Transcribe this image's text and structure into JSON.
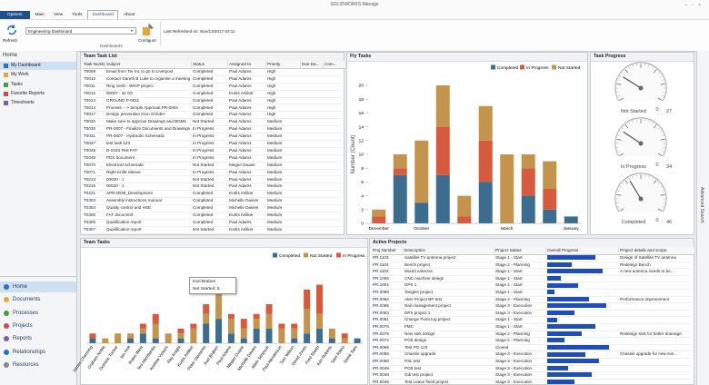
{
  "window": {
    "title": "SOLIDWORKS Manage"
  },
  "menu": [
    "Options",
    "Main",
    "View",
    "Tools",
    "Dashboard",
    "About"
  ],
  "ribbon": {
    "refresh": "Refresh",
    "dashboard_select": "Engineering Dashboard",
    "configure": "Configure",
    "last_refreshed": "Last Refreshed on: Nov/13/2017 03:11",
    "group": "Dashboards"
  },
  "sidebar": {
    "title": "Home",
    "items": [
      "My Dashboard",
      "My Work",
      "Tasks",
      "Favorite Reports",
      "Timesheets"
    ],
    "nav": [
      "Home",
      "Documents",
      "Processes",
      "Projects",
      "Reports",
      "Relationships",
      "Resources"
    ]
  },
  "side_tab": "Advanced Search",
  "task_list": {
    "title": "Team Task List",
    "columns": [
      "Task Number",
      "Subject",
      "Status",
      "Assigned to",
      "Priority",
      "Due Da...",
      "Com..."
    ],
    "rows": [
      [
        "T0009",
        "Email from Ter Inc to go to Liverpool",
        "Completed",
        "Paul Adams",
        "High"
      ],
      [
        "T0010",
        "Contact Gareth B Luke to organise a meeting",
        "Completed",
        "Paul Adams",
        "High"
      ],
      [
        "T0011",
        "Ring Gerb - WKIP project",
        "Completed",
        "Paul Adams",
        "High"
      ],
      [
        "T0012",
        "00007 - 3x Gh",
        "Completed",
        "Kurtis Anliker",
        "High"
      ],
      [
        "T0013",
        "GROUND P-0011",
        "Completed",
        "Paul Adams",
        "High"
      ],
      [
        "T0014",
        "Process - -> Simple Approval,PR-0004",
        "Completed",
        "Paul Adams",
        "High"
      ],
      [
        "T0017",
        "Design prevention Kion Grinder",
        "Completed",
        "Paul Adams",
        "High"
      ],
      [
        "T0020",
        "Make sure to approve Drawings and BOMs",
        "Not Started",
        "Paul Adams",
        "Medium"
      ],
      [
        "T0030",
        "PR-0007 - Finalize Documents and Drawings",
        "In Progress",
        "Paul Adams",
        "Medium"
      ],
      [
        "T0031",
        "PR-0007 - Hydraulic Schematic",
        "In Progress",
        "Paul Adams",
        "Medium"
      ],
      [
        "T0047",
        "test task 123",
        "In Progress",
        "Paul Adams",
        "Medium"
      ],
      [
        "T0048",
        "D-0443 Test FAT",
        "In Progress",
        "Paul Adams",
        "Medium"
      ],
      [
        "T0049",
        "PDS document",
        "In Progress",
        "Paul Adams",
        "Medium"
      ],
      [
        "T0070",
        "Electrical Schematic",
        "Not Started",
        "Megan Duane",
        "Medium"
      ],
      [
        "T0071",
        "Right Knife Sleeve",
        "In Progress",
        "Paul Adams",
        "Medium"
      ],
      [
        "T0213",
        "00020 - 1",
        "Not Started",
        "Paul Adams",
        "Medium"
      ],
      [
        "T0215",
        "00020 - 1",
        "Not Started",
        "Paul Adams",
        "Medium"
      ],
      [
        "T0221",
        "APR-0038_Development",
        "Completed",
        "Kurtis Anliker",
        "Medium"
      ],
      [
        "T0303",
        "Assembly instructions manual",
        "Completed",
        "Michelle Davies",
        "Medium"
      ],
      [
        "T0304",
        "Quality control and HSE",
        "Completed",
        "Michelle Davies",
        "Medium"
      ],
      [
        "T0305",
        "FAT document",
        "Completed",
        "Kurtis Anliker",
        "Medium"
      ],
      [
        "T0306",
        "Qualification report",
        "Completed",
        "Paul Adams",
        "Medium"
      ],
      [
        "T0307",
        "Qualification report",
        "Not Started",
        "Kurtis Anliker",
        "Medium"
      ]
    ]
  },
  "fly_tasks": {
    "type": "bar",
    "stacked": true,
    "title": "Fly Tasks",
    "y_label": "Number (Count)",
    "categories": [
      "December",
      null,
      "October",
      null,
      null,
      null,
      "March",
      null,
      null,
      "January"
    ],
    "series": [
      {
        "name": "Completed",
        "color": "#3d6d8e",
        "values": [
          0,
          7,
          3,
          7,
          0,
          6,
          0,
          4,
          2,
          1
        ]
      },
      {
        "name": "In Progress",
        "color": "#d65a3d",
        "values": [
          1,
          1,
          0,
          7,
          1,
          6,
          0,
          4,
          3,
          0
        ]
      },
      {
        "name": "Not Started",
        "color": "#c3944e",
        "values": [
          1,
          2,
          9,
          6,
          3,
          5,
          10,
          2,
          4,
          0
        ]
      }
    ],
    "ylim": [
      0,
      20
    ],
    "yticks": [
      0,
      2,
      4,
      6,
      8,
      10,
      12,
      14,
      16,
      18,
      20
    ]
  },
  "task_progress": {
    "title": "Task Progress",
    "gauges": [
      {
        "label": "Not Started",
        "value": 7,
        "min": 0,
        "max": 27
      },
      {
        "label": "In Progress",
        "value": 9,
        "min": 0,
        "max": 34
      },
      {
        "label": "Completed",
        "value": 17,
        "min": 0,
        "max": 46
      }
    ]
  },
  "team_tasks": {
    "type": "bar",
    "stacked": true,
    "title": "Team Tasks",
    "categories": [
      "James Channing",
      "Graham Noble",
      "Dominic Tucker",
      "Ian Holt",
      "Robin West",
      "Ted Hitchbanks",
      "Andrew Vickers",
      "Ray Knight",
      "Kurtis Anliker",
      "Peter Clements",
      "Karl Braben",
      "Paul Adams",
      "Megan Duane",
      "Michelle Davies",
      "Mark Simpson",
      "Paul Henderson",
      "Tom Wilson",
      "David Jones",
      "Fred Shield",
      "Kim Roberts",
      "Sam Rains",
      "Samir Sani"
    ],
    "series": [
      {
        "name": "Completed",
        "color": "#3d6d8e",
        "values": [
          1,
          0,
          0,
          1,
          2,
          1,
          0,
          1,
          0,
          4,
          5,
          2,
          1,
          3,
          3,
          0,
          1,
          2,
          3,
          1,
          0,
          1
        ]
      },
      {
        "name": "Not Started",
        "color": "#c3944e",
        "values": [
          0,
          1,
          2,
          1,
          1,
          3,
          2,
          1,
          3,
          2,
          5,
          3,
          2,
          2,
          3,
          3,
          2,
          5,
          3,
          2,
          1,
          0
        ]
      },
      {
        "name": "In Progress",
        "color": "#d65a3d",
        "values": [
          1,
          0,
          0,
          0,
          1,
          2,
          0,
          1,
          1,
          2,
          2,
          1,
          2,
          1,
          2,
          1,
          1,
          4,
          6,
          0,
          1,
          0
        ]
      }
    ],
    "ylim": [
      0,
      16
    ],
    "tooltip": {
      "title": "Karl Braben",
      "text": "Not Started: 5"
    }
  },
  "active_projects": {
    "title": "Active Projects",
    "columns": [
      "Proj Number",
      "Description",
      "Project Status",
      "Overall Progress",
      "Project details and scope"
    ],
    "xlim": [
      0,
      100
    ],
    "rows": [
      {
        "number": "PR.1103",
        "description": "Satellite TV antenna project",
        "status": "Stage 1 - Start",
        "progress": 70,
        "details": "Design of Satellite TV antenna"
      },
      {
        "number": "PR.1104",
        "description": "Bench project",
        "status": "Stage 2 - Planning",
        "progress": 35,
        "details": "Redesign Bench"
      },
      {
        "number": "PR.1102",
        "description": "Mount antenna",
        "status": "Stage 1 - Start",
        "progress": 80,
        "details": "A new antenna needs to be..."
      },
      {
        "number": "PR.1006",
        "description": "CNC machine design",
        "status": "Stage 1 - Start",
        "progress": 20
      },
      {
        "number": "PR.1001",
        "description": "DPS 1",
        "status": "Stage 1 - Start",
        "progress": 45
      },
      {
        "number": "PR.0098",
        "description": "Tangles project",
        "status": "Stage 1 - Start",
        "progress": 10
      },
      {
        "number": "PR.0092",
        "description": "Aker Project BP test",
        "status": "Stage 2 - Planning",
        "progress": 60,
        "details": "Performance improvement"
      },
      {
        "number": "PR.0085",
        "description": "Rail management project",
        "status": "Stage 3 - Execution",
        "progress": 85
      },
      {
        "number": "PR.0083",
        "description": "DPS project 1",
        "status": "Stage 3 - Execution",
        "progress": 40
      },
      {
        "number": "PR.0081",
        "description": "Change Point tog project",
        "status": "Stage 1 - Start",
        "progress": 15
      },
      {
        "number": "PR.0076",
        "description": "FMC",
        "status": "Stage 1 - Start",
        "progress": 70
      },
      {
        "number": "PR.0075",
        "description": "New sink design",
        "status": "Stage 2 - Planning",
        "progress": 50,
        "details": "Redesign sink for better drainage"
      },
      {
        "number": "PR.0072",
        "description": "PCB design",
        "status": "Stage 2 - Planning",
        "progress": 25
      },
      {
        "number": "PR.0069",
        "description": "Test PG 123",
        "status": "Closed",
        "progress": 90
      },
      {
        "number": "PR.0055",
        "description": "Chassis upgrade",
        "status": "Stage 3 - Execution",
        "progress": 55,
        "details": "Chassis upgrade for new sus..."
      },
      {
        "number": "PR.0050",
        "description": "PSL test",
        "status": "Stage 3 - Execution",
        "progress": 75
      },
      {
        "number": "PR.0049",
        "description": "PCB test",
        "status": "Stage 3 - Execution",
        "progress": 30
      },
      {
        "number": "PR.0048",
        "description": "Gdi test project",
        "status": "Stage 3 - Execution",
        "progress": 65
      },
      {
        "number": "PR.0045",
        "description": "Test Leave fixed project",
        "status": "Stage 3 - Execution",
        "progress": 40
      }
    ]
  }
}
